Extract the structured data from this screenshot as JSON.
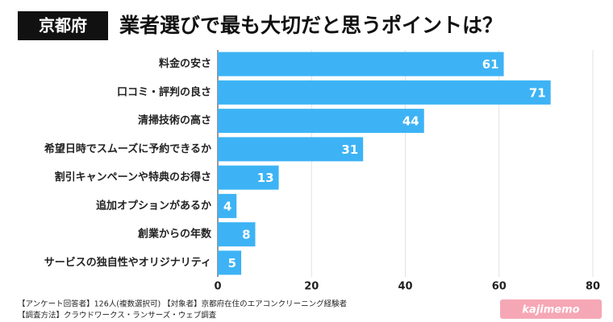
{
  "chart_data": {
    "type": "barh",
    "badge": "京都府",
    "title": "業者選びで最も大切だと思うポイントは？",
    "categories": [
      "料金の安さ",
      "口コミ・評判の良さ",
      "清掃技術の高さ",
      "希望日時でスムーズに予約できるか",
      "割引キャンペーンや特典のお得さ",
      "追加オプションがあるか",
      "創業からの年数",
      "サービスの独自性やオリジナリティ"
    ],
    "values": [
      61,
      71,
      44,
      31,
      13,
      4,
      8,
      5
    ],
    "color": "#3db3f5",
    "xlim": [
      0,
      80
    ],
    "xticks": [
      0,
      20,
      40,
      60,
      80
    ],
    "grid": true,
    "notes": [
      "【アンケート回答者】126人(複数選択可) 【対象者】京都府在住のエアコンクリーニング経験者",
      "【調査方法】クラウドワークス・ランサーズ・ウェブ調査"
    ],
    "logo": "kajimemo"
  }
}
